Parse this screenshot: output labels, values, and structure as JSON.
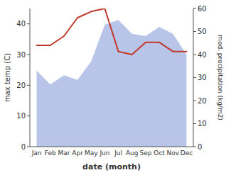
{
  "chart_data": {
    "type": "line",
    "categories": [
      "Jan",
      "Feb",
      "Mar",
      "Apr",
      "May",
      "Jun",
      "Jul",
      "Aug",
      "Sep",
      "Oct",
      "Nov",
      "Dec"
    ],
    "series": [
      {
        "type": "area",
        "axis": "y2",
        "color": "#b8c4e8",
        "values": [
          33,
          27,
          31,
          29,
          37,
          53,
          55,
          49,
          48,
          52,
          49,
          40
        ]
      },
      {
        "type": "line",
        "color": "#c0392b",
        "values": [
          33,
          33,
          36,
          42,
          44,
          45,
          31,
          30,
          34,
          34,
          31,
          31
        ]
      }
    ],
    "xlabel": "date (month)",
    "ylabel": "max temp (C)",
    "y2label": "med. precipitation (kg/m2)",
    "ylim": [
      0,
      45
    ],
    "yticks": [
      0,
      10,
      20,
      30,
      40
    ],
    "y2lim": [
      0,
      60
    ],
    "y2ticks": [
      0,
      10,
      20,
      30,
      40,
      50,
      60
    ]
  }
}
